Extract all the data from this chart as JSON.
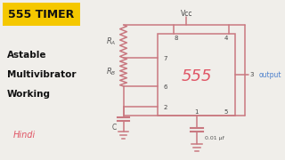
{
  "bg_color": "#f0eeea",
  "title_box_color": "#f5c800",
  "title_text": "555 TIMER",
  "title_text_color": "#111111",
  "left_text_lines": [
    "Astable",
    "Multivibrator",
    "Working"
  ],
  "left_text_color": "#111111",
  "hindi_text": "Hindi",
  "hindi_text_color": "#e05565",
  "circuit_color": "#c97880",
  "ic_label": "555",
  "ic_label_color": "#e05565",
  "vcc_label": "Vcc",
  "output_label": "output",
  "output_label_color": "#4a7fcc",
  "cap_label": "0.01 µf",
  "ra_label": "$R_A$",
  "rb_label": "$R_B$",
  "c_label": "C"
}
